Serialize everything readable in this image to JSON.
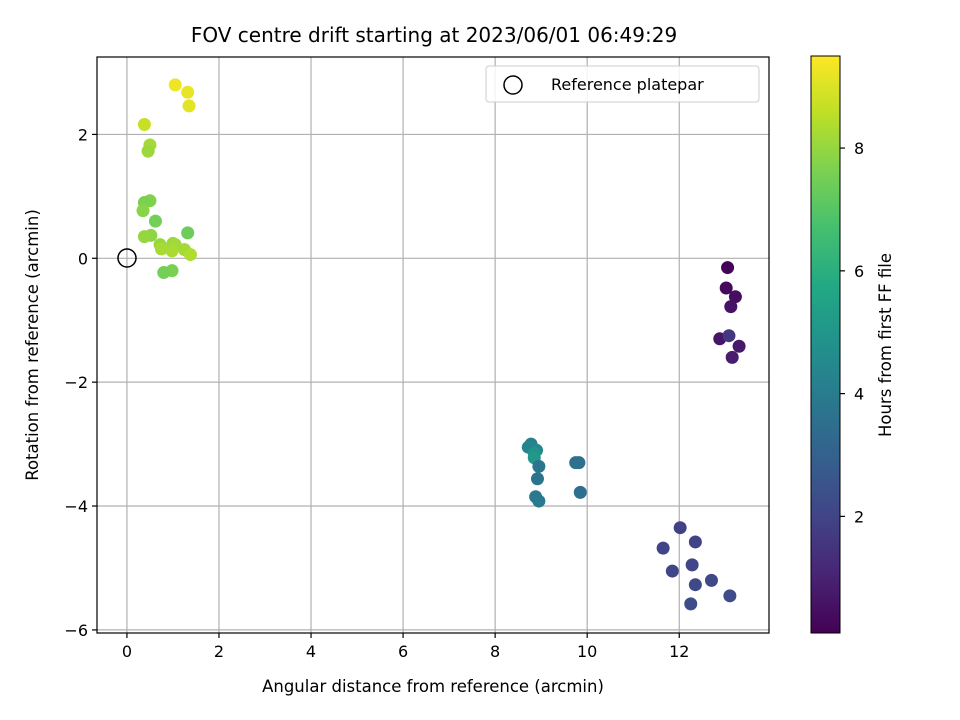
{
  "chart_data": {
    "type": "scatter",
    "title": "FOV centre drift starting at 2023/06/01 06:49:29",
    "xlabel": "Angular distance from reference (arcmin)",
    "ylabel": "Rotation from reference (arcmin)",
    "xlim": [
      -0.65,
      13.95
    ],
    "ylim": [
      -6.05,
      3.25
    ],
    "xticks": [
      0,
      2,
      4,
      6,
      8,
      10,
      12
    ],
    "yticks": [
      -6,
      -4,
      -2,
      0,
      2
    ],
    "ytick_labels": [
      "−6",
      "−4",
      "−2",
      "0",
      "2"
    ],
    "grid": true,
    "legend": {
      "label": "Reference platepar",
      "placement": "top-right"
    },
    "reference_point": {
      "x": 0,
      "y": 0
    },
    "colorbar": {
      "label": "Hours from first FF file",
      "colormap": "viridis",
      "range": [
        0.1,
        9.5
      ],
      "ticks": [
        2,
        4,
        6,
        8
      ]
    },
    "points": [
      {
        "x": 13.05,
        "y": -0.15,
        "c": 0.2
      },
      {
        "x": 13.02,
        "y": -0.48,
        "c": 0.35
      },
      {
        "x": 13.22,
        "y": -0.62,
        "c": 0.45
      },
      {
        "x": 13.12,
        "y": -0.78,
        "c": 0.55
      },
      {
        "x": 12.88,
        "y": -1.3,
        "c": 0.65
      },
      {
        "x": 13.08,
        "y": -1.25,
        "c": 1.6
      },
      {
        "x": 13.3,
        "y": -1.42,
        "c": 0.75
      },
      {
        "x": 13.15,
        "y": -1.6,
        "c": 0.85
      },
      {
        "x": 12.02,
        "y": -4.35,
        "c": 1.9
      },
      {
        "x": 12.35,
        "y": -4.58,
        "c": 1.95
      },
      {
        "x": 11.65,
        "y": -4.68,
        "c": 2.0
      },
      {
        "x": 12.28,
        "y": -4.95,
        "c": 2.05
      },
      {
        "x": 11.85,
        "y": -5.05,
        "c": 2.1
      },
      {
        "x": 12.7,
        "y": -5.2,
        "c": 2.15
      },
      {
        "x": 12.35,
        "y": -5.27,
        "c": 2.2
      },
      {
        "x": 13.1,
        "y": -5.45,
        "c": 2.25
      },
      {
        "x": 12.25,
        "y": -5.58,
        "c": 2.3
      },
      {
        "x": 8.78,
        "y": -3.0,
        "c": 4.2
      },
      {
        "x": 8.72,
        "y": -3.05,
        "c": 4.3
      },
      {
        "x": 8.9,
        "y": -3.1,
        "c": 4.45
      },
      {
        "x": 8.85,
        "y": -3.15,
        "c": 4.9
      },
      {
        "x": 8.85,
        "y": -3.22,
        "c": 5.1
      },
      {
        "x": 8.95,
        "y": -3.36,
        "c": 3.8
      },
      {
        "x": 9.75,
        "y": -3.3,
        "c": 3.6
      },
      {
        "x": 9.82,
        "y": -3.3,
        "c": 3.55
      },
      {
        "x": 8.92,
        "y": -3.56,
        "c": 3.7
      },
      {
        "x": 8.88,
        "y": -3.85,
        "c": 3.9
      },
      {
        "x": 8.95,
        "y": -3.92,
        "c": 3.95
      },
      {
        "x": 9.85,
        "y": -3.78,
        "c": 3.5
      },
      {
        "x": 1.05,
        "y": 2.8,
        "c": 9.3
      },
      {
        "x": 1.32,
        "y": 2.68,
        "c": 9.2
      },
      {
        "x": 1.35,
        "y": 2.46,
        "c": 9.1
      },
      {
        "x": 0.38,
        "y": 2.16,
        "c": 8.7
      },
      {
        "x": 0.5,
        "y": 1.83,
        "c": 8.2
      },
      {
        "x": 0.46,
        "y": 1.73,
        "c": 8.1
      },
      {
        "x": 0.5,
        "y": 0.93,
        "c": 7.7
      },
      {
        "x": 0.38,
        "y": 0.9,
        "c": 7.6
      },
      {
        "x": 0.35,
        "y": 0.77,
        "c": 7.8
      },
      {
        "x": 0.62,
        "y": 0.6,
        "c": 7.5
      },
      {
        "x": 1.32,
        "y": 0.41,
        "c": 7.4
      },
      {
        "x": 0.52,
        "y": 0.37,
        "c": 7.9
      },
      {
        "x": 0.38,
        "y": 0.35,
        "c": 8.0
      },
      {
        "x": 0.72,
        "y": 0.22,
        "c": 8.05
      },
      {
        "x": 1.0,
        "y": 0.24,
        "c": 8.1
      },
      {
        "x": 1.05,
        "y": 0.22,
        "c": 8.15
      },
      {
        "x": 1.25,
        "y": 0.14,
        "c": 8.2
      },
      {
        "x": 0.75,
        "y": 0.15,
        "c": 8.25
      },
      {
        "x": 0.98,
        "y": 0.12,
        "c": 8.3
      },
      {
        "x": 1.38,
        "y": 0.06,
        "c": 8.35
      },
      {
        "x": 0.98,
        "y": -0.2,
        "c": 7.6
      },
      {
        "x": 0.8,
        "y": -0.23,
        "c": 7.5
      }
    ]
  }
}
